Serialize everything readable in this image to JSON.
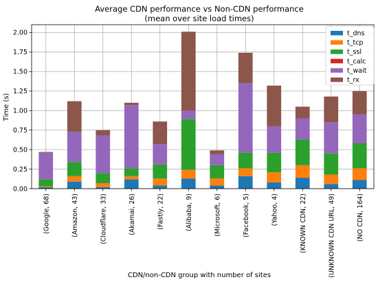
{
  "chart_data": {
    "type": "bar",
    "stacked": true,
    "title": "Average CDN performance vs Non-CDN performance",
    "subtitle": "(mean over site load times)",
    "xlabel": "CDN/non-CDN group with number of sites",
    "ylabel": "Time (s)",
    "ylim": [
      0,
      2.1
    ],
    "yticks": [
      "0.00",
      "0.25",
      "0.50",
      "0.75",
      "1.00",
      "1.25",
      "1.50",
      "1.75",
      "2.00"
    ],
    "grid": true,
    "legend_position": "top-right",
    "categories": [
      "(Google, 68)",
      "(Amazon, 43)",
      "(Cloudflare, 33)",
      "(Akamai, 26)",
      "(Fastly, 22)",
      "(Alibaba, 9)",
      "(Microsoft, 6)",
      "(Facebook, 5)",
      "(Yahoo, 4)",
      "(KNOWN CDN, 22)",
      "(UNKNOWN CDN URL, 49)",
      "(NO CDN, 164)"
    ],
    "series": [
      {
        "name": "t_dns",
        "color": "#1f77b4",
        "values": [
          0.02,
          0.09,
          0.02,
          0.12,
          0.04,
          0.13,
          0.04,
          0.16,
          0.08,
          0.14,
          0.06,
          0.11
        ]
      },
      {
        "name": "t_tcp",
        "color": "#ff7f0e",
        "values": [
          0.01,
          0.07,
          0.05,
          0.04,
          0.09,
          0.11,
          0.09,
          0.1,
          0.13,
          0.16,
          0.12,
          0.15
        ]
      },
      {
        "name": "t_ssl",
        "color": "#2ca02c",
        "values": [
          0.09,
          0.18,
          0.13,
          0.1,
          0.18,
          0.65,
          0.17,
          0.2,
          0.25,
          0.33,
          0.27,
          0.32
        ]
      },
      {
        "name": "t_calc",
        "color": "#d62728",
        "values": [
          0.0,
          0.0,
          0.0,
          0.0,
          0.0,
          0.0,
          0.0,
          0.0,
          0.0,
          0.0,
          0.0,
          0.0
        ]
      },
      {
        "name": "t_wait",
        "color": "#9467bd",
        "values": [
          0.34,
          0.39,
          0.48,
          0.81,
          0.26,
          0.11,
          0.14,
          0.89,
          0.34,
          0.27,
          0.4,
          0.37
        ]
      },
      {
        "name": "t_rx",
        "color": "#8c564b",
        "values": [
          0.01,
          0.39,
          0.07,
          0.03,
          0.29,
          1.01,
          0.05,
          0.39,
          0.52,
          0.15,
          0.33,
          0.3
        ]
      }
    ]
  }
}
